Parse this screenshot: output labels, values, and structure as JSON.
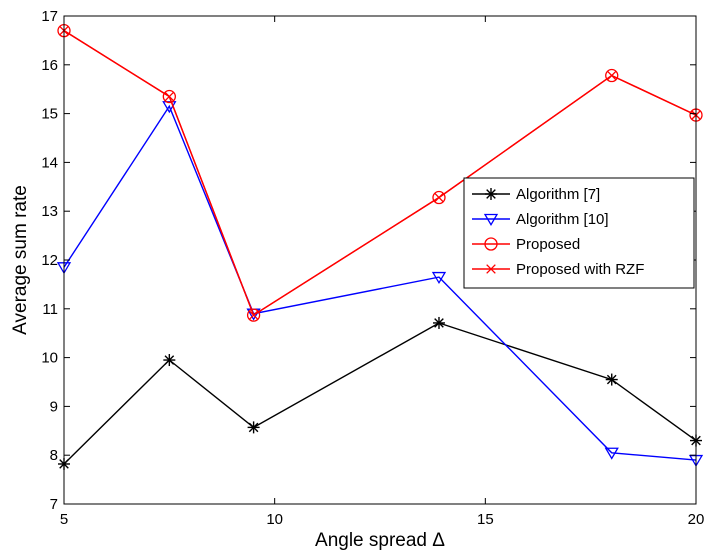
{
  "chart_data": {
    "type": "line",
    "title": "",
    "xlabel": "Angle spread Δ",
    "ylabel": "Average sum rate",
    "xlim": [
      5,
      20
    ],
    "ylim": [
      7,
      17
    ],
    "xticks": [
      5,
      10,
      15,
      20
    ],
    "yticks": [
      7,
      8,
      9,
      10,
      11,
      12,
      13,
      14,
      15,
      16,
      17
    ],
    "grid": false,
    "legend_position": "center-right",
    "series": [
      {
        "name": "Algorithm [7]",
        "color": "#000000",
        "marker": "asterisk",
        "x": [
          5,
          7.5,
          9.5,
          13.9,
          18,
          20
        ],
        "y": [
          7.82,
          9.95,
          8.57,
          10.71,
          9.55,
          8.3
        ]
      },
      {
        "name": "Algorithm [10]",
        "color": "#0000ff",
        "marker": "triangle-down",
        "x": [
          5,
          7.5,
          9.5,
          13.9,
          18,
          20
        ],
        "y": [
          11.85,
          15.15,
          10.9,
          11.65,
          8.05,
          7.9
        ]
      },
      {
        "name": "Proposed",
        "color": "#ff0000",
        "marker": "circle",
        "x": [
          5,
          7.5,
          9.5,
          13.9,
          18,
          20
        ],
        "y": [
          16.7,
          15.35,
          10.87,
          13.28,
          15.78,
          14.97
        ]
      },
      {
        "name": "Proposed with RZF",
        "color": "#ff0000",
        "marker": "x",
        "x": [
          5,
          7.5,
          9.5,
          13.9,
          18,
          20
        ],
        "y": [
          16.7,
          15.35,
          10.87,
          13.28,
          15.78,
          14.97
        ]
      }
    ]
  }
}
